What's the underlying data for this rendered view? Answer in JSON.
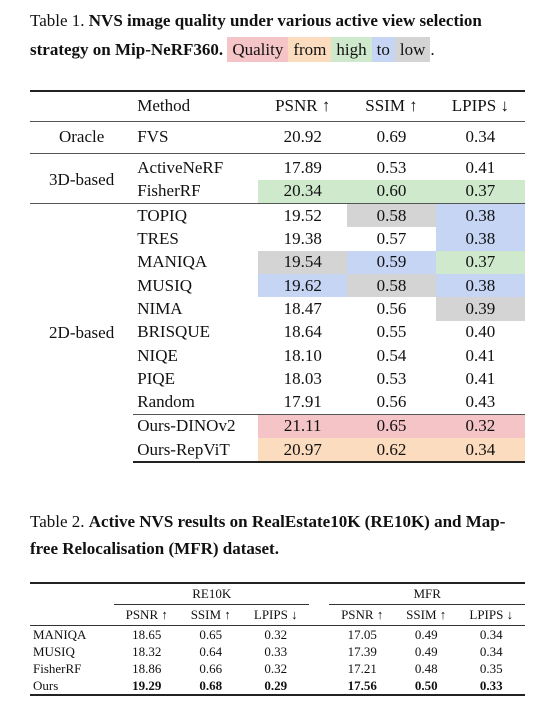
{
  "table1": {
    "caption_label": "Table 1.",
    "caption_bold": "NVS image quality under various active view selection strategy on Mip-NeRF360.",
    "legend": [
      {
        "text": "Quality",
        "color": "#f4c4c6"
      },
      {
        "text": "from",
        "color": "#fbdcbe"
      },
      {
        "text": "high",
        "color": "#cfe9cd"
      },
      {
        "text": "to",
        "color": "#c6d5f4"
      },
      {
        "text": "low",
        "color": "#d4d4d4"
      }
    ],
    "legend_end": ".",
    "header": {
      "method": "Method",
      "psnr": "PSNR ↑",
      "ssim": "SSIM ↑",
      "lpips": "LPIPS ↓"
    },
    "groups": {
      "oracle": "Oracle",
      "three_d": "3D-based",
      "two_d": "2D-based"
    },
    "rows": [
      {
        "method": "FVS",
        "psnr": "20.92",
        "ssim": "0.69",
        "lpips": "0.34"
      },
      {
        "method": "ActiveNeRF",
        "psnr": "17.89",
        "ssim": "0.53",
        "lpips": "0.41"
      },
      {
        "method": "FisherRF",
        "psnr": "20.34",
        "ssim": "0.60",
        "lpips": "0.37"
      },
      {
        "method": "TOPIQ",
        "psnr": "19.52",
        "ssim": "0.58",
        "lpips": "0.38"
      },
      {
        "method": "TRES",
        "psnr": "19.38",
        "ssim": "0.57",
        "lpips": "0.38"
      },
      {
        "method": "MANIQA",
        "psnr": "19.54",
        "ssim": "0.59",
        "lpips": "0.37"
      },
      {
        "method": "MUSIQ",
        "psnr": "19.62",
        "ssim": "0.58",
        "lpips": "0.38"
      },
      {
        "method": "NIMA",
        "psnr": "18.47",
        "ssim": "0.56",
        "lpips": "0.39"
      },
      {
        "method": "BRISQUE",
        "psnr": "18.64",
        "ssim": "0.55",
        "lpips": "0.40"
      },
      {
        "method": "NIQE",
        "psnr": "18.10",
        "ssim": "0.54",
        "lpips": "0.41"
      },
      {
        "method": "PIQE",
        "psnr": "18.03",
        "ssim": "0.53",
        "lpips": "0.41"
      },
      {
        "method": "Random",
        "psnr": "17.91",
        "ssim": "0.56",
        "lpips": "0.43"
      },
      {
        "method": "Ours-DINOv2",
        "psnr": "21.11",
        "ssim": "0.65",
        "lpips": "0.32"
      },
      {
        "method": "Ours-RepViT",
        "psnr": "20.97",
        "ssim": "0.62",
        "lpips": "0.34"
      }
    ]
  },
  "table2": {
    "caption_label": "Table 2.",
    "caption_bold": "Active NVS results on RealEstate10K (RE10K) and Map-free Relocalisation (MFR) dataset.",
    "group1": "RE10K",
    "group2": "MFR",
    "cols": {
      "psnr": "PSNR ↑",
      "ssim": "SSIM ↑",
      "lpips": "LPIPS ↓"
    },
    "rows": [
      {
        "method": "MANIQA",
        "re_psnr": "18.65",
        "re_ssim": "0.65",
        "re_lpips": "0.32",
        "mfr_psnr": "17.05",
        "mfr_ssim": "0.49",
        "mfr_lpips": "0.34"
      },
      {
        "method": "MUSIQ",
        "re_psnr": "18.32",
        "re_ssim": "0.64",
        "re_lpips": "0.33",
        "mfr_psnr": "17.39",
        "mfr_ssim": "0.49",
        "mfr_lpips": "0.34"
      },
      {
        "method": "FisherRF",
        "re_psnr": "18.86",
        "re_ssim": "0.66",
        "re_lpips": "0.32",
        "mfr_psnr": "17.21",
        "mfr_ssim": "0.48",
        "mfr_lpips": "0.35"
      },
      {
        "method": "Ours",
        "re_psnr": "19.29",
        "re_ssim": "0.68",
        "re_lpips": "0.29",
        "mfr_psnr": "17.56",
        "mfr_ssim": "0.50",
        "mfr_lpips": "0.33"
      }
    ]
  }
}
